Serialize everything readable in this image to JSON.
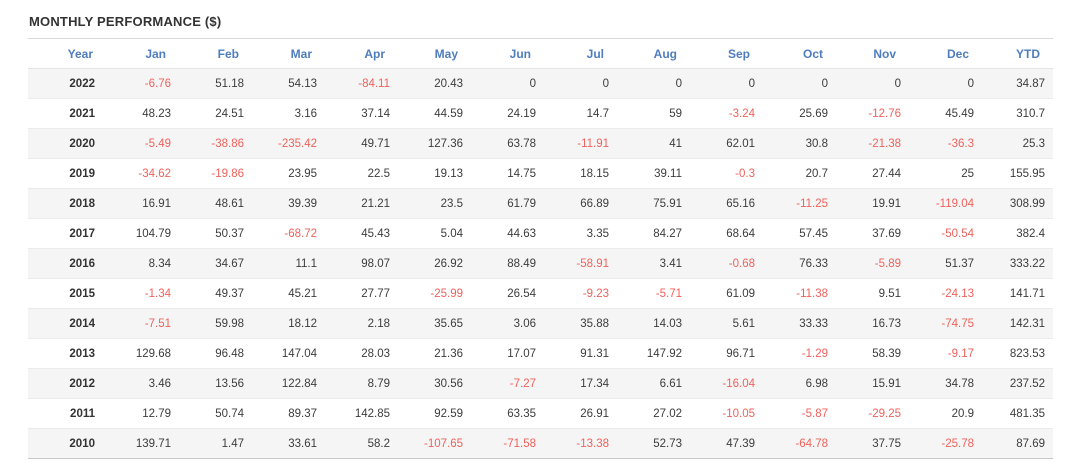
{
  "title": "MONTHLY PERFORMANCE ($)",
  "colors": {
    "header_text": "#4f7dbe",
    "negative_value": "#ef625c",
    "positive_value": "#3c3c3c",
    "title_text": "#333333",
    "row_stripe": "#f5f5f5"
  },
  "table": {
    "columns": [
      "Year",
      "Jan",
      "Feb",
      "Mar",
      "Apr",
      "May",
      "Jun",
      "Jul",
      "Aug",
      "Sep",
      "Oct",
      "Nov",
      "Dec",
      "YTD"
    ],
    "rows": [
      {
        "year": "2022",
        "values": [
          "-6.76",
          "51.18",
          "54.13",
          "-84.11",
          "20.43",
          "0",
          "0",
          "0",
          "0",
          "0",
          "0",
          "0",
          "34.87"
        ]
      },
      {
        "year": "2021",
        "values": [
          "48.23",
          "24.51",
          "3.16",
          "37.14",
          "44.59",
          "24.19",
          "14.7",
          "59",
          "-3.24",
          "25.69",
          "-12.76",
          "45.49",
          "310.7"
        ]
      },
      {
        "year": "2020",
        "values": [
          "-5.49",
          "-38.86",
          "-235.42",
          "49.71",
          "127.36",
          "63.78",
          "-11.91",
          "41",
          "62.01",
          "30.8",
          "-21.38",
          "-36.3",
          "25.3"
        ]
      },
      {
        "year": "2019",
        "values": [
          "-34.62",
          "-19.86",
          "23.95",
          "22.5",
          "19.13",
          "14.75",
          "18.15",
          "39.11",
          "-0.3",
          "20.7",
          "27.44",
          "25",
          "155.95"
        ]
      },
      {
        "year": "2018",
        "values": [
          "16.91",
          "48.61",
          "39.39",
          "21.21",
          "23.5",
          "61.79",
          "66.89",
          "75.91",
          "65.16",
          "-11.25",
          "19.91",
          "-119.04",
          "308.99"
        ]
      },
      {
        "year": "2017",
        "values": [
          "104.79",
          "50.37",
          "-68.72",
          "45.43",
          "5.04",
          "44.63",
          "3.35",
          "84.27",
          "68.64",
          "57.45",
          "37.69",
          "-50.54",
          "382.4"
        ]
      },
      {
        "year": "2016",
        "values": [
          "8.34",
          "34.67",
          "11.1",
          "98.07",
          "26.92",
          "88.49",
          "-58.91",
          "3.41",
          "-0.68",
          "76.33",
          "-5.89",
          "51.37",
          "333.22"
        ]
      },
      {
        "year": "2015",
        "values": [
          "-1.34",
          "49.37",
          "45.21",
          "27.77",
          "-25.99",
          "26.54",
          "-9.23",
          "-5.71",
          "61.09",
          "-11.38",
          "9.51",
          "-24.13",
          "141.71"
        ]
      },
      {
        "year": "2014",
        "values": [
          "-7.51",
          "59.98",
          "18.12",
          "2.18",
          "35.65",
          "3.06",
          "35.88",
          "14.03",
          "5.61",
          "33.33",
          "16.73",
          "-74.75",
          "142.31"
        ]
      },
      {
        "year": "2013",
        "values": [
          "129.68",
          "96.48",
          "147.04",
          "28.03",
          "21.36",
          "17.07",
          "91.31",
          "147.92",
          "96.71",
          "-1.29",
          "58.39",
          "-9.17",
          "823.53"
        ]
      },
      {
        "year": "2012",
        "values": [
          "3.46",
          "13.56",
          "122.84",
          "8.79",
          "30.56",
          "-7.27",
          "17.34",
          "6.61",
          "-16.04",
          "6.98",
          "15.91",
          "34.78",
          "237.52"
        ]
      },
      {
        "year": "2011",
        "values": [
          "12.79",
          "50.74",
          "89.37",
          "142.85",
          "92.59",
          "63.35",
          "26.91",
          "27.02",
          "-10.05",
          "-5.87",
          "-29.25",
          "20.9",
          "481.35"
        ]
      },
      {
        "year": "2010",
        "values": [
          "139.71",
          "1.47",
          "33.61",
          "58.2",
          "-107.65",
          "-71.58",
          "-13.38",
          "52.73",
          "47.39",
          "-64.78",
          "37.75",
          "-25.78",
          "87.69"
        ]
      }
    ]
  }
}
